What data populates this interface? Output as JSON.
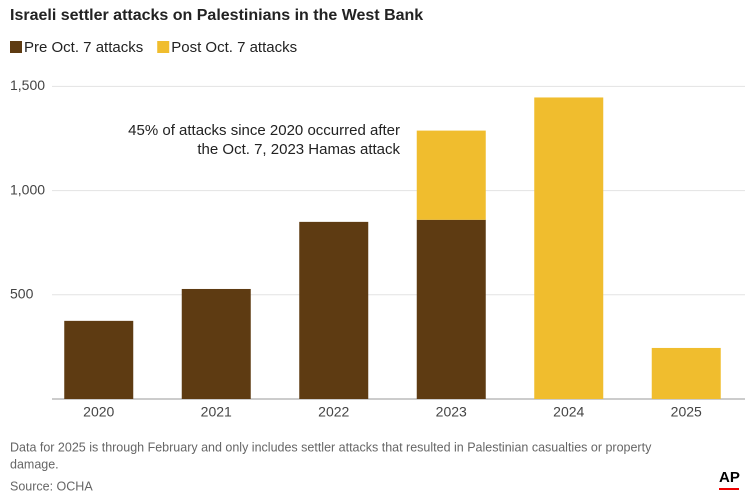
{
  "chart_data": {
    "type": "stacked-bar",
    "title": "Israeli settler attacks on Palestinians in the West Bank",
    "categories": [
      "2020",
      "2021",
      "2022",
      "2023",
      "2024",
      "2025"
    ],
    "series": [
      {
        "name": "Pre Oct. 7 attacks",
        "color": "#5e3b12",
        "values": [
          375,
          528,
          850,
          860,
          null,
          null
        ]
      },
      {
        "name": "Post Oct. 7 attacks",
        "color": "#f0bd2e",
        "values": [
          null,
          null,
          null,
          428,
          1447,
          245
        ]
      }
    ],
    "ylim": [
      0,
      1550
    ],
    "yticks": [
      500,
      {
        "value": 1000,
        "label": "1,000"
      },
      {
        "value": 1500,
        "label": "1,500"
      }
    ],
    "grid": true,
    "annotation": [
      "45% of attacks since 2020 occurred after",
      "the Oct. 7, 2023 Hamas attack"
    ],
    "notes": [
      "Data for 2025 is through February and only includes settler attacks that resulted in Palestinian casualties or property",
      "damage."
    ],
    "source": "Source: OCHA",
    "logo": "AP"
  }
}
